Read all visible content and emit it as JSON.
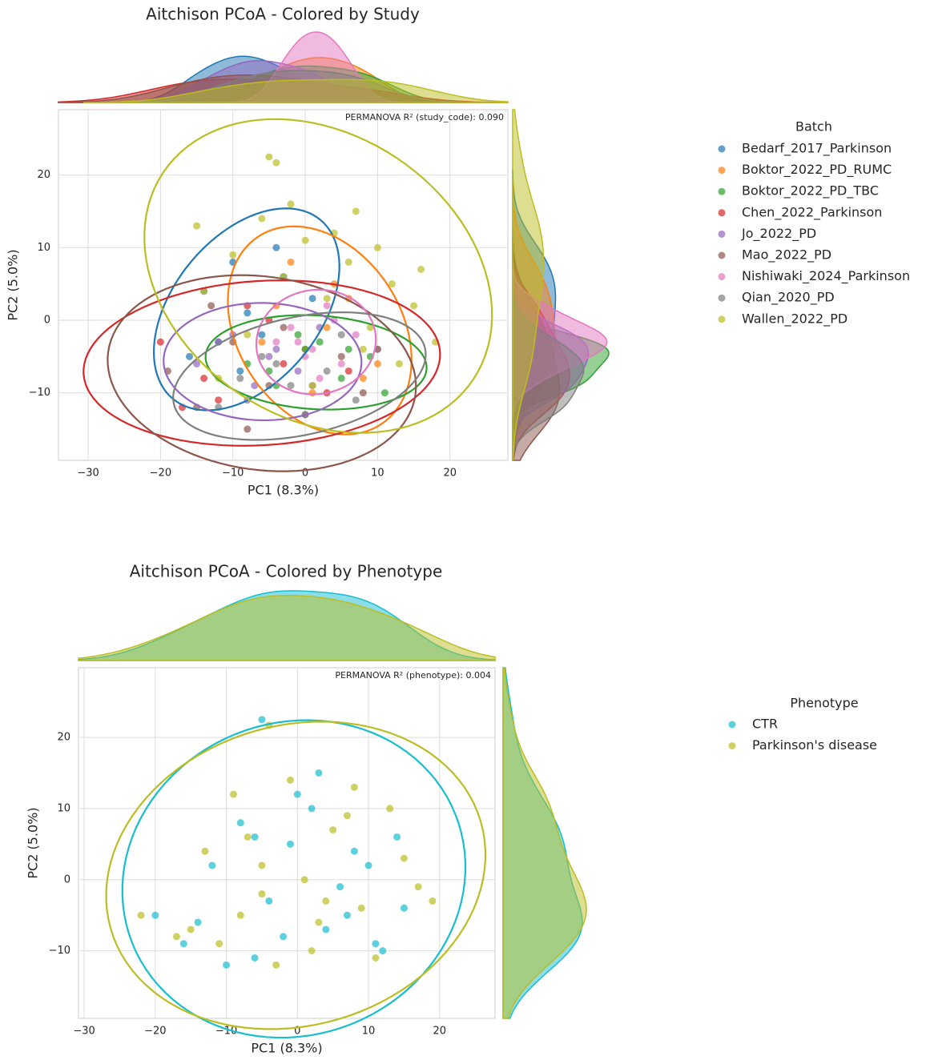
{
  "chart_data": [
    {
      "type": "scatter",
      "title": "Aitchison PCoA - Colored by Study",
      "xlabel": "PC1 (8.3%)",
      "ylabel": "PC2 (5.0%)",
      "annotation": "PERMANOVA R² (study_code): 0.090",
      "legend_title": "Batch",
      "grid": true,
      "xlim": [
        -34.1,
        28
      ],
      "ylim": [
        -19.3,
        29
      ],
      "xticks": [
        {
          "value": -30,
          "label": "−30"
        },
        {
          "value": -20,
          "label": "−20"
        },
        {
          "value": -10,
          "label": "−10"
        },
        0,
        10,
        20
      ],
      "yticks": [
        {
          "value": -10,
          "label": "−10"
        },
        0,
        10,
        20
      ],
      "series": [
        {
          "name": "Bedarf_2017_Parkinson",
          "color": "#1f77b4",
          "x": [
            -14,
            -10,
            -6,
            -3,
            -16,
            -8,
            -12,
            -4,
            1,
            -9
          ],
          "y": [
            4,
            8,
            -2,
            6,
            -5,
            1,
            -3,
            10,
            3,
            -7
          ]
        },
        {
          "name": "Boktor_2022_PD_RUMC",
          "color": "#ff7f0e",
          "x": [
            -4,
            0,
            4,
            8,
            -2,
            3,
            10,
            6,
            -6,
            1
          ],
          "y": [
            2,
            -4,
            5,
            -8,
            8,
            -1,
            -6,
            3,
            -3,
            -10
          ]
        },
        {
          "name": "Boktor_2022_PD_TBC",
          "color": "#2ca02c",
          "x": [
            -8,
            0,
            5,
            -1,
            9,
            -5,
            2,
            11,
            -4,
            6
          ],
          "y": [
            -6,
            -4,
            -8,
            -2,
            -5,
            -7,
            -3,
            -10,
            -9,
            -4
          ]
        },
        {
          "name": "Chen_2022_Parkinson",
          "color": "#d62728",
          "x": [
            -20,
            -14,
            -8,
            -3,
            3,
            10,
            -12,
            -5,
            6,
            -17
          ],
          "y": [
            -3,
            -8,
            2,
            -6,
            -10,
            -4,
            -11,
            0,
            -7,
            -12
          ]
        },
        {
          "name": "Jo_2022_PD",
          "color": "#9467bd",
          "x": [
            -15,
            -10,
            -7,
            -4,
            -1,
            2,
            -12,
            -8,
            -5,
            1
          ],
          "y": [
            -6,
            -2,
            -9,
            -4,
            -7,
            -1,
            -3,
            -11,
            -5,
            -9
          ]
        },
        {
          "name": "Mao_2022_PD",
          "color": "#8c564b",
          "x": [
            -19,
            -15,
            -10,
            -5,
            0,
            5,
            -13,
            -8,
            -3,
            8
          ],
          "y": [
            -7,
            -12,
            -3,
            -9,
            -13,
            -5,
            2,
            -15,
            -1,
            -10
          ]
        },
        {
          "name": "Nishiwaki_2024_Parkinson",
          "color": "#e377c2",
          "x": [
            -2,
            1,
            3,
            5,
            -1,
            4,
            7,
            0,
            2,
            -4
          ],
          "y": [
            -1,
            -4,
            2,
            -6,
            -3,
            0,
            -2,
            -5,
            -8,
            -3
          ]
        },
        {
          "name": "Qian_2020_PD",
          "color": "#7f7f7f",
          "x": [
            -12,
            -6,
            -2,
            3,
            7,
            10,
            -9,
            0,
            5,
            -4
          ],
          "y": [
            -12,
            -5,
            -9,
            -7,
            -11,
            -4,
            -8,
            -13,
            -2,
            -6
          ]
        },
        {
          "name": "Wallen_2022_PD",
          "color": "#bcbd22",
          "x": [
            -15,
            -10,
            -6,
            -3,
            0,
            3,
            6,
            9,
            12,
            15,
            18,
            -8,
            -2,
            4,
            8,
            13,
            -12,
            1,
            10,
            -5,
            -4,
            7,
            16,
            -14
          ],
          "y": [
            13,
            9,
            14,
            6,
            11,
            3,
            8,
            -1,
            5,
            2,
            -3,
            -2,
            16,
            12,
            -4,
            -6,
            -8,
            -9,
            10,
            22.5,
            21.7,
            15,
            7,
            4
          ]
        }
      ]
    },
    {
      "type": "scatter",
      "title": "Aitchison PCoA - Colored by Phenotype",
      "xlabel": "PC1 (8.3%)",
      "ylabel": "PC2 (5.0%)",
      "annotation": "PERMANOVA R² (phenotype): 0.004",
      "legend_title": "Phenotype",
      "grid": true,
      "xlim": [
        -30.8,
        27.8
      ],
      "ylim": [
        -19.5,
        29.8
      ],
      "xticks": [
        {
          "value": -30,
          "label": "−30"
        },
        {
          "value": -20,
          "label": "−20"
        },
        {
          "value": -10,
          "label": "−10"
        },
        0,
        10,
        20
      ],
      "yticks": [
        {
          "value": -10,
          "label": "−10"
        },
        0,
        10,
        20
      ],
      "series": [
        {
          "name": "CTR",
          "color": "#17becf",
          "x": [
            -20,
            -16,
            -12,
            -8,
            -4,
            0,
            4,
            8,
            12,
            15,
            -10,
            -6,
            -2,
            2,
            6,
            10,
            -14,
            -5,
            3,
            11,
            -6,
            7,
            -1,
            14
          ],
          "y": [
            -5,
            -9,
            2,
            8,
            -3,
            12,
            -7,
            4,
            -10,
            -4,
            -12,
            6,
            -8,
            10,
            -1,
            2,
            -6,
            22.5,
            15,
            -9,
            -11,
            -5,
            5,
            6
          ]
        },
        {
          "name": "Parkinson's disease",
          "color": "#bcbd22",
          "x": [
            -22,
            -17,
            -13,
            -9,
            -5,
            -1,
            3,
            7,
            11,
            15,
            19,
            -11,
            -7,
            -3,
            1,
            5,
            9,
            13,
            -15,
            -4,
            -5,
            2,
            8,
            17,
            -8,
            4
          ],
          "y": [
            -5,
            -8,
            4,
            12,
            -2,
            14,
            -6,
            9,
            -11,
            3,
            -3,
            -9,
            6,
            -12,
            0,
            7,
            -4,
            10,
            -7,
            21.7,
            2,
            -10,
            13,
            -1,
            -5,
            -3
          ]
        }
      ]
    }
  ]
}
